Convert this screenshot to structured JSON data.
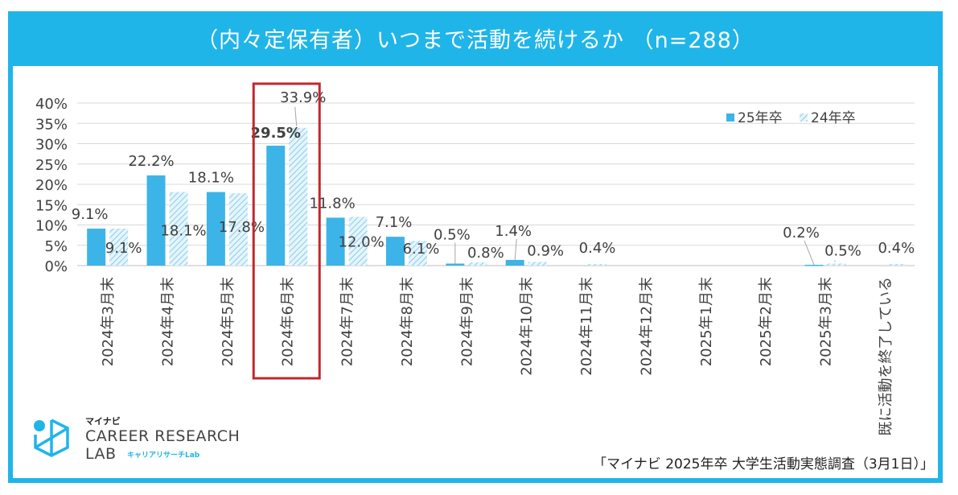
{
  "header": {
    "title": "（内々定保有者）いつまで活動を続けるか （n=288）"
  },
  "source": "「マイナビ 2025年卒 大学生活動実態調査（3月1日）」",
  "logo": {
    "brand": "マイナビ",
    "line1": "CAREER RESEARCH",
    "line2": "LAB",
    "sub": "キャリアリサーチLab"
  },
  "colors": {
    "accent": "#1fb5e9",
    "bar25": "#3cb4e8",
    "bar24": "#a8dcf2",
    "highlight": "#c0282e",
    "text": "#404040"
  },
  "chart_data": {
    "type": "bar",
    "title": "（内々定保有者）いつまで活動を続けるか （n=288）",
    "categories": [
      "2024年3月末",
      "2024年4月末",
      "2024年5月末",
      "2024年6月末",
      "2024年7月末",
      "2024年8月末",
      "2024年9月末",
      "2024年10月末",
      "2024年11月末",
      "2024年12月末",
      "2025年1月末",
      "2025年2月末",
      "2025年3月末",
      "既に活動を終了している"
    ],
    "series": [
      {
        "name": "25年卒",
        "values": [
          9.1,
          22.2,
          18.1,
          29.5,
          11.8,
          7.1,
          0.5,
          1.4,
          null,
          null,
          null,
          null,
          0.2,
          null
        ]
      },
      {
        "name": "24年卒",
        "values": [
          9.1,
          18.1,
          17.8,
          33.9,
          12.0,
          6.1,
          0.8,
          0.9,
          0.4,
          null,
          null,
          null,
          0.5,
          0.4
        ]
      }
    ],
    "labels": {
      "s25": [
        "9.1%",
        "22.2%",
        "18.1%",
        "29.5%",
        "11.8%",
        "7.1%",
        "0.5%",
        "1.4%",
        "",
        "",
        "",
        "",
        "0.2%",
        ""
      ],
      "s24": [
        "9.1%",
        "18.1%",
        "17.8%",
        "33.9%",
        "12.0%",
        "6.1%",
        "0.8%",
        "0.9%",
        "0.4%",
        "",
        "",
        "",
        "0.5%",
        "0.4%"
      ]
    },
    "yticks": [
      "0%",
      "5%",
      "10%",
      "15%",
      "20%",
      "25%",
      "30%",
      "35%",
      "40%"
    ],
    "ylim": [
      0,
      40
    ],
    "xlabel": "",
    "ylabel": "",
    "highlight_category": "2024年6月末",
    "legend_position": "top-right",
    "grid": true
  }
}
